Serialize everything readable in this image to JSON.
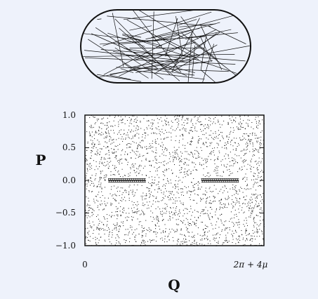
{
  "chart_data": [
    {
      "type": "diagram",
      "description_visible_text": "",
      "shape": "stadium billiard trajectory"
    },
    {
      "type": "scatter",
      "xlabel": "Q",
      "ylabel": "P",
      "xlim": [
        0,
        1
      ],
      "ylim": [
        -1.0,
        1.0
      ],
      "x_tick_labels": [
        "0",
        "2π + 4μ"
      ],
      "y_tick_labels": [
        "1.0",
        "0.5",
        "0.0",
        "−0.5",
        "−1.0"
      ],
      "features": [
        {
          "name": "",
          "x_range": [
            0.13,
            0.34
          ],
          "y": 0.0
        },
        {
          "name": "",
          "x_range": [
            0.65,
            0.86
          ],
          "y": 0.0
        }
      ]
    }
  ],
  "colors": {
    "background": "#eef2fb",
    "ink": "#111111"
  }
}
